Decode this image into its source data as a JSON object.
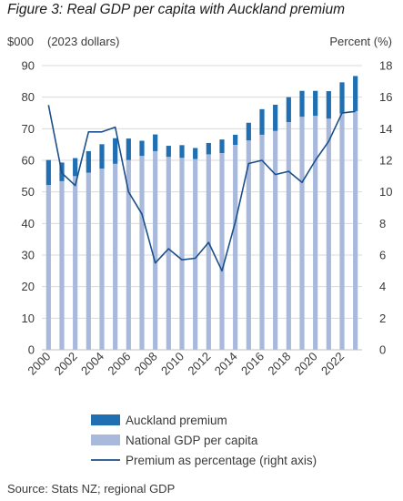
{
  "figure_title": "Figure 3: Real GDP per capita with Auckland premium",
  "source": "Source: Stats NZ; regional GDP",
  "chart_data": {
    "type": "bar",
    "stacked": true,
    "left_axis_title": "$000",
    "left_axis_subtitle": "(2023 dollars)",
    "right_axis_title": "Percent (%)",
    "left_ylim": [
      0,
      90
    ],
    "right_ylim": [
      0,
      18
    ],
    "left_ticks": [
      "0",
      "10",
      "20",
      "30",
      "40",
      "50",
      "60",
      "70",
      "80",
      "90"
    ],
    "right_ticks": [
      "0",
      "2",
      "4",
      "6",
      "8",
      "10",
      "12",
      "14",
      "16",
      "18"
    ],
    "x_tick_labels": [
      "2000",
      "2002",
      "2004",
      "2006",
      "2008",
      "2010",
      "2012",
      "2014",
      "2016",
      "2018",
      "2020",
      "2022"
    ],
    "grid": true,
    "legend_position": "bottom",
    "categories": [
      "2000",
      "2001",
      "2002",
      "2003",
      "2004",
      "2005",
      "2006",
      "2007",
      "2008",
      "2009",
      "2010",
      "2011",
      "2012",
      "2013",
      "2014",
      "2015",
      "2016",
      "2017",
      "2018",
      "2019",
      "2020",
      "2021",
      "2022",
      "2023"
    ],
    "series": [
      {
        "name": "National GDP per capita",
        "kind": "bar",
        "axis": "left",
        "color": "#a8b9dc",
        "values": [
          52.2,
          53.4,
          55.0,
          56.1,
          57.4,
          58.9,
          60.1,
          61.4,
          62.9,
          61.1,
          60.8,
          60.4,
          61.9,
          62.3,
          64.9,
          66.3,
          68.1,
          69.3,
          72.1,
          73.8,
          74.1,
          73.2,
          74.8,
          75.6
        ]
      },
      {
        "name": "Auckland premium",
        "kind": "bar",
        "axis": "left",
        "color": "#1f6fb2",
        "values": [
          7.9,
          5.9,
          5.7,
          6.8,
          7.7,
          8.1,
          6.8,
          4.8,
          5.3,
          3.5,
          4.0,
          3.5,
          3.6,
          4.3,
          3.2,
          5.6,
          8.1,
          8.3,
          7.9,
          8.2,
          7.9,
          8.7,
          9.9,
          11.1
        ]
      },
      {
        "name": "Premium as percentage (right axis)",
        "kind": "line",
        "axis": "right",
        "color": "#1b4f8a",
        "values": [
          15.5,
          11.2,
          10.4,
          13.8,
          13.8,
          14.1,
          10.0,
          8.6,
          5.5,
          6.4,
          5.7,
          5.8,
          6.8,
          5.0,
          8.1,
          11.8,
          12.0,
          11.1,
          11.3,
          10.6,
          12.0,
          13.2,
          15.0,
          15.1
        ]
      }
    ]
  }
}
